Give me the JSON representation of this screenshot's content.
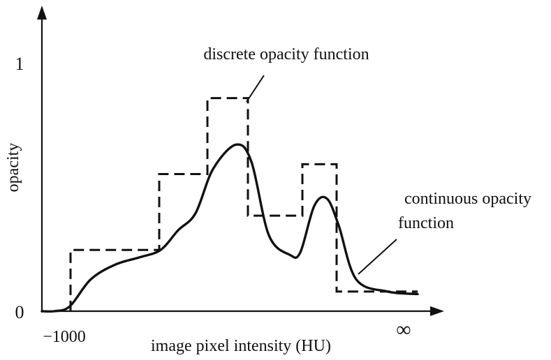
{
  "chart_data": {
    "type": "line",
    "xlabel": "image pixel intensity (HU)",
    "ylabel": "opacity",
    "x_ticks": [
      "−1000",
      "∞"
    ],
    "y_ticks": [
      "0",
      "1"
    ],
    "ylim": [
      0,
      1
    ],
    "grid": false,
    "series": [
      {
        "name": "discrete opacity function",
        "style": "dashed-step",
        "x_start": -1000,
        "steps": [
          {
            "level": 0.25
          },
          {
            "level": 0.56
          },
          {
            "level": 0.87
          },
          {
            "level": 0.39
          },
          {
            "level": 0.6
          },
          {
            "level": 0.08
          }
        ]
      },
      {
        "name": "continuous opacity function",
        "style": "solid-smooth",
        "y_profile": [
          0.0,
          0.0,
          0.02,
          0.13,
          0.19,
          0.22,
          0.25,
          0.33,
          0.4,
          0.58,
          0.68,
          0.61,
          0.31,
          0.23,
          0.24,
          0.43,
          0.46,
          0.35,
          0.13,
          0.08,
          0.07
        ]
      }
    ],
    "annotations": [
      "discrete opacity function",
      "continuous opacity function"
    ],
    "colors": {
      "lines": "#111111",
      "background": "#ffffff"
    }
  }
}
